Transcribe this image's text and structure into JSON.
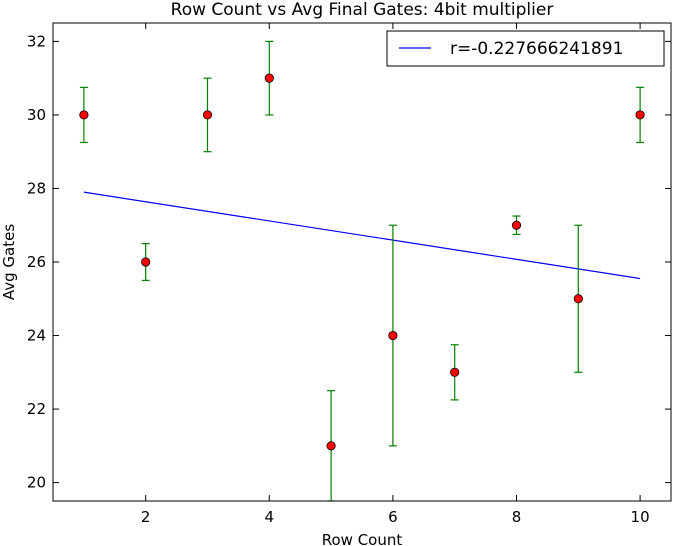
{
  "chart_data": {
    "type": "scatter",
    "title": "Row Count vs Avg Final Gates: 4bit multiplier",
    "xlabel": "Row Count",
    "ylabel": "Avg Gates",
    "xlim": [
      0.5,
      10.5
    ],
    "ylim": [
      19.5,
      32.5
    ],
    "xticks": [
      2,
      4,
      6,
      8,
      10
    ],
    "yticks": [
      20,
      22,
      24,
      26,
      28,
      30,
      32
    ],
    "grid": false,
    "legend_position": "top-right",
    "series": [
      {
        "kind": "points-with-errorbars",
        "marker_color": "#ff0000",
        "errorbar_color": "#008000",
        "points": [
          {
            "x": 1,
            "y": 30,
            "err_low": 29.25,
            "err_high": 30.75
          },
          {
            "x": 2,
            "y": 26,
            "err_low": 25.5,
            "err_high": 26.5
          },
          {
            "x": 3,
            "y": 30,
            "err_low": 29.0,
            "err_high": 31.0
          },
          {
            "x": 4,
            "y": 31,
            "err_low": 30.0,
            "err_high": 32.0
          },
          {
            "x": 5,
            "y": 21,
            "err_low": 19.5,
            "err_high": 22.5
          },
          {
            "x": 6,
            "y": 24,
            "err_low": 21.0,
            "err_high": 27.0
          },
          {
            "x": 7,
            "y": 23,
            "err_low": 22.25,
            "err_high": 23.75
          },
          {
            "x": 8,
            "y": 27,
            "err_low": 26.75,
            "err_high": 27.25
          },
          {
            "x": 9,
            "y": 25,
            "err_low": 23.0,
            "err_high": 27.0
          },
          {
            "x": 10,
            "y": 30,
            "err_low": 29.25,
            "err_high": 30.75
          }
        ]
      },
      {
        "name": "r=-0.227666241891",
        "kind": "line",
        "color": "#0000ff",
        "x": [
          1,
          10
        ],
        "y": [
          27.9,
          25.55
        ]
      }
    ]
  }
}
